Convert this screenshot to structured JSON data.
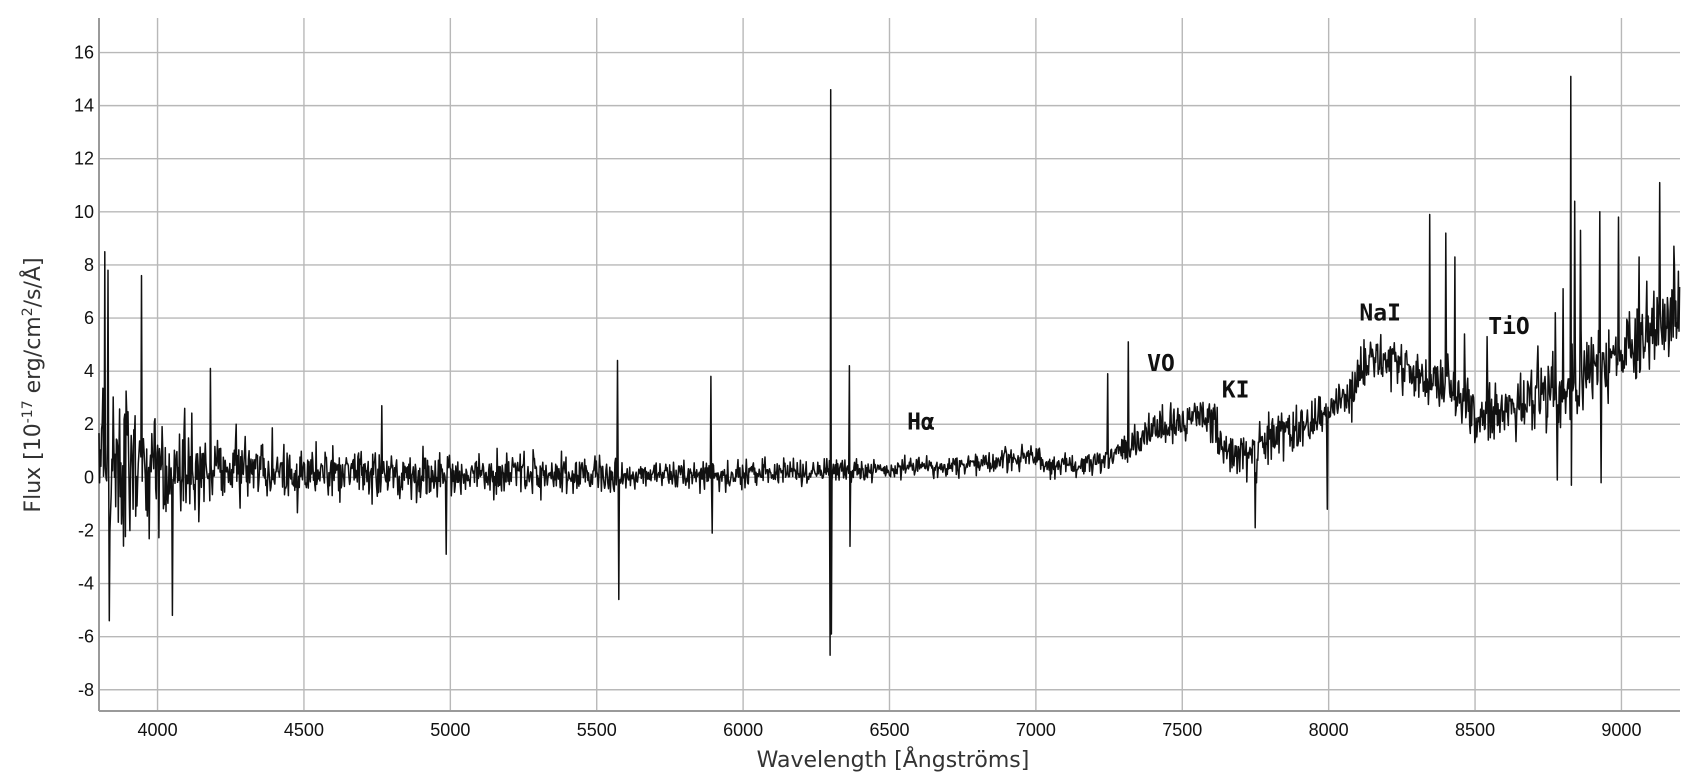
{
  "chart_data": {
    "type": "line",
    "xlabel": "Wavelength [Ångströms]",
    "ylabel_parts": {
      "prefix": "Flux [10",
      "exp1": "-17",
      "mid": " erg/cm",
      "exp2": "2",
      "suffix": "/s/Å]"
    },
    "xlim": [
      3800,
      9200
    ],
    "ylim": [
      -8.8,
      17.3
    ],
    "x_ticks": [
      4000,
      4500,
      5000,
      5500,
      6000,
      6500,
      7000,
      7500,
      8000,
      8500,
      9000
    ],
    "x_tick_labels": [
      "4000",
      "4500",
      "5000",
      "5500",
      "6000",
      "6500",
      "7000",
      "7500",
      "8000",
      "8500",
      "9000"
    ],
    "y_ticks": [
      -8,
      -6,
      -4,
      -2,
      0,
      2,
      4,
      6,
      8,
      10,
      12,
      14,
      16
    ],
    "y_tick_labels": [
      "-8",
      "-6",
      "-4",
      "-2",
      "0",
      "2",
      "4",
      "6",
      "8",
      "10",
      "12",
      "14",
      "16"
    ],
    "grid": true,
    "line_color": "#111111",
    "annotations": [
      {
        "text": "Hα",
        "x": 6560,
        "y": 1.8
      },
      {
        "text": "VO",
        "x": 7380,
        "y": 4.0
      },
      {
        "text": "KI",
        "x": 7635,
        "y": 3.0
      },
      {
        "text": "NaI",
        "x": 8105,
        "y": 5.9
      },
      {
        "text": "TiO",
        "x": 8545,
        "y": 5.4
      }
    ],
    "continuum": [
      [
        3800,
        0.8
      ],
      [
        4000,
        0.4
      ],
      [
        4500,
        0.2
      ],
      [
        5000,
        0.1
      ],
      [
        5500,
        0.1
      ],
      [
        6000,
        0.1
      ],
      [
        6500,
        0.3
      ],
      [
        6800,
        0.5
      ],
      [
        7000,
        0.8
      ],
      [
        7060,
        0.4
      ],
      [
        7250,
        0.6
      ],
      [
        7350,
        1.5
      ],
      [
        7450,
        2.0
      ],
      [
        7580,
        2.5
      ],
      [
        7650,
        1.0
      ],
      [
        7700,
        0.7
      ],
      [
        7800,
        1.4
      ],
      [
        8000,
        2.4
      ],
      [
        8100,
        3.6
      ],
      [
        8150,
        4.6
      ],
      [
        8250,
        4.2
      ],
      [
        8400,
        3.4
      ],
      [
        8500,
        2.3
      ],
      [
        8650,
        2.8
      ],
      [
        8800,
        3.5
      ],
      [
        9000,
        4.7
      ],
      [
        9200,
        6.3
      ]
    ],
    "noise": [
      [
        3800,
        3.2
      ],
      [
        4000,
        2.3
      ],
      [
        4200,
        1.3
      ],
      [
        4500,
        0.9
      ],
      [
        5000,
        0.75
      ],
      [
        5500,
        0.7
      ],
      [
        6000,
        0.55
      ],
      [
        6500,
        0.35
      ],
      [
        7000,
        0.4
      ],
      [
        7300,
        0.55
      ],
      [
        7700,
        0.9
      ],
      [
        8000,
        0.9
      ],
      [
        8500,
        1.1
      ],
      [
        8800,
        1.4
      ],
      [
        9200,
        1.5
      ]
    ],
    "spikes": [
      {
        "x": 3820,
        "y": 8.5
      },
      {
        "x": 3830,
        "y": 7.8
      },
      {
        "x": 3835,
        "y": -5.4
      },
      {
        "x": 3945,
        "y": 7.6
      },
      {
        "x": 4050,
        "y": -5.2
      },
      {
        "x": 4180,
        "y": 4.1
      },
      {
        "x": 4765,
        "y": 2.7
      },
      {
        "x": 4985,
        "y": -2.9
      },
      {
        "x": 5570,
        "y": 4.4
      },
      {
        "x": 5575,
        "y": -4.6
      },
      {
        "x": 5890,
        "y": 3.8
      },
      {
        "x": 5895,
        "y": -2.1
      },
      {
        "x": 6298,
        "y": -6.7
      },
      {
        "x": 6300,
        "y": 14.6
      },
      {
        "x": 6302,
        "y": -5.9
      },
      {
        "x": 6363,
        "y": 4.2
      },
      {
        "x": 6365,
        "y": -2.6
      },
      {
        "x": 7245,
        "y": 3.9
      },
      {
        "x": 7316,
        "y": 5.1
      },
      {
        "x": 7750,
        "y": -1.9
      },
      {
        "x": 7995,
        "y": -1.2
      },
      {
        "x": 8345,
        "y": 9.9
      },
      {
        "x": 8400,
        "y": 9.2
      },
      {
        "x": 8430,
        "y": 8.3
      },
      {
        "x": 8465,
        "y": 5.4
      },
      {
        "x": 8540,
        "y": 5.3
      },
      {
        "x": 8775,
        "y": 6.2
      },
      {
        "x": 8780,
        "y": -0.1
      },
      {
        "x": 8800,
        "y": 7.1
      },
      {
        "x": 8827,
        "y": 15.1
      },
      {
        "x": 8830,
        "y": -0.3
      },
      {
        "x": 8840,
        "y": 10.4
      },
      {
        "x": 8860,
        "y": 9.3
      },
      {
        "x": 8925,
        "y": 10.0
      },
      {
        "x": 8930,
        "y": -0.2
      },
      {
        "x": 8990,
        "y": 9.8
      },
      {
        "x": 9060,
        "y": 8.3
      },
      {
        "x": 9130,
        "y": 11.1
      },
      {
        "x": 9180,
        "y": 8.7
      }
    ]
  }
}
